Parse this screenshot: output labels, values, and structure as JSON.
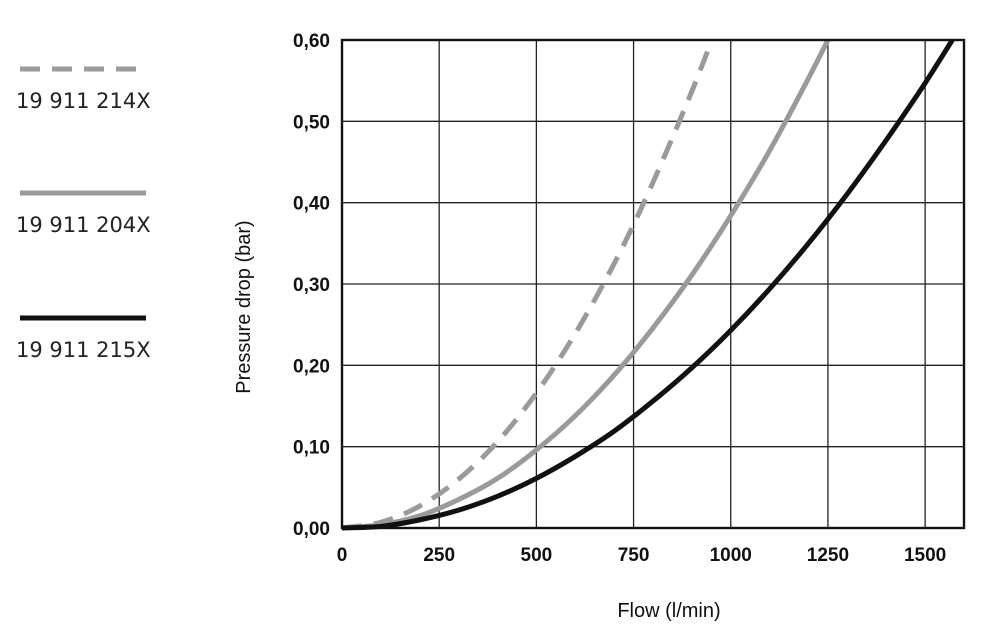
{
  "chart_data": {
    "type": "line",
    "xlabel": "Flow (l/min)",
    "ylabel": "Pressure drop (bar)",
    "xlim": [
      0,
      1600
    ],
    "ylim": [
      0,
      0.6
    ],
    "x_ticks": [
      0,
      250,
      500,
      750,
      1000,
      1250,
      1500
    ],
    "x_tick_labels": [
      "0",
      "250",
      "500",
      "750",
      "1000",
      "1250",
      "1500"
    ],
    "y_ticks": [
      0,
      0.1,
      0.2,
      0.3,
      0.4,
      0.5,
      0.6
    ],
    "y_tick_labels": [
      "0,00",
      "0,10",
      "0,20",
      "0,30",
      "0,40",
      "0,50",
      "0,60"
    ],
    "grid": true,
    "legend_position": "left",
    "series": [
      {
        "name": "19 911 214X",
        "style": "dashed",
        "color": "#9a9a9a",
        "x": [
          0,
          100,
          200,
          300,
          400,
          500,
          600,
          700,
          750,
          800,
          900,
          950
        ],
        "y": [
          0.0,
          0.007,
          0.027,
          0.06,
          0.106,
          0.166,
          0.239,
          0.325,
          0.373,
          0.425,
          0.537,
          0.598
        ]
      },
      {
        "name": "19 911 204X",
        "style": "solid",
        "color": "#9a9a9a",
        "x": [
          0,
          100,
          200,
          300,
          400,
          500,
          600,
          700,
          800,
          900,
          1000,
          1100,
          1200,
          1250
        ],
        "y": [
          0.0,
          0.004,
          0.015,
          0.035,
          0.061,
          0.096,
          0.138,
          0.188,
          0.246,
          0.311,
          0.384,
          0.464,
          0.553,
          0.6
        ]
      },
      {
        "name": "19 911 215X",
        "style": "solid",
        "color": "#111111",
        "x": [
          0,
          100,
          200,
          300,
          400,
          500,
          600,
          700,
          800,
          900,
          1000,
          1100,
          1200,
          1300,
          1400,
          1500,
          1570
        ],
        "y": [
          0.0,
          0.002,
          0.01,
          0.022,
          0.039,
          0.061,
          0.088,
          0.119,
          0.156,
          0.197,
          0.243,
          0.294,
          0.35,
          0.411,
          0.477,
          0.547,
          0.6
        ]
      }
    ]
  }
}
